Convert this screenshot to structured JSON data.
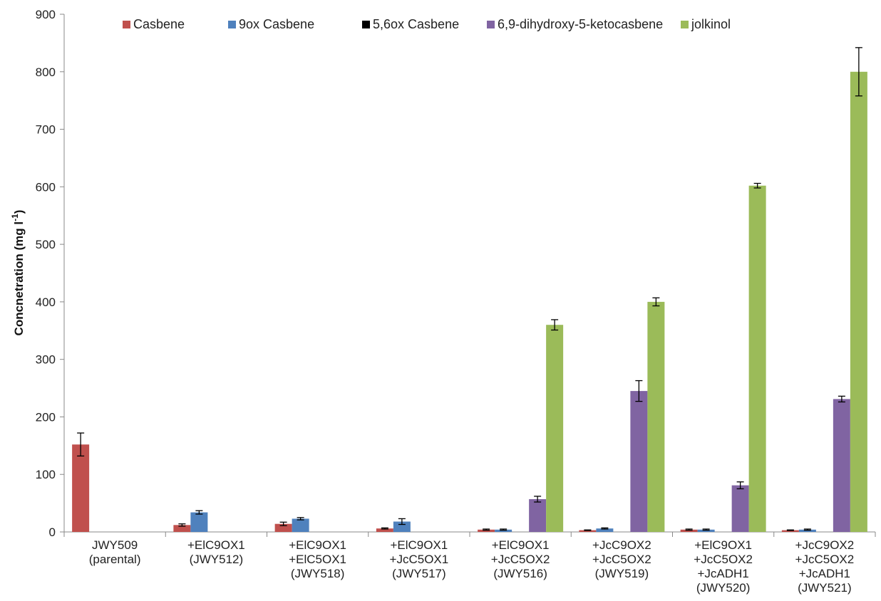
{
  "chart_data": {
    "type": "bar",
    "title": "",
    "xlabel": "",
    "ylabel": "Concnetration (mg l",
    "ylabel_superscript": "-1",
    "ylabel_suffix": ")",
    "ylim": [
      0,
      900
    ],
    "yticks": [
      0,
      100,
      200,
      300,
      400,
      500,
      600,
      700,
      800,
      900
    ],
    "grid": false,
    "legend_position": "top",
    "categories": [
      [
        "JWY509",
        "(parental)"
      ],
      [
        "+ElC9OX1",
        "(JWY512)"
      ],
      [
        "+ElC9OX1",
        "+ElC5OX1",
        "(JWY518)"
      ],
      [
        "+ElC9OX1",
        "+JcC5OX1",
        "(JWY517)"
      ],
      [
        "+ElC9OX1",
        "+JcC5OX2",
        "(JWY516)"
      ],
      [
        "+JcC9OX2",
        "+JcC5OX2",
        "(JWY519)"
      ],
      [
        "+ElC9OX1",
        "+JcC5OX2",
        "+JcADH1",
        "(JWY520)"
      ],
      [
        "+JcC9OX2",
        "+JcC5OX2",
        "+JcADH1",
        "(JWY521)"
      ]
    ],
    "series": [
      {
        "name": "Casbene",
        "color": "#c0504d",
        "values": [
          152,
          12,
          14,
          6,
          4,
          3,
          4,
          3
        ],
        "errors": [
          20,
          2,
          3,
          1,
          1,
          0.5,
          1,
          0.5
        ]
      },
      {
        "name": "9ox Casbene",
        "color": "#4f81bd",
        "values": [
          0,
          34,
          23,
          18,
          4,
          6,
          4,
          4
        ],
        "errors": [
          0,
          3,
          2,
          5,
          1,
          1,
          1,
          1
        ]
      },
      {
        "name": "5,6ox Casbene",
        "color": "#000000",
        "values": [
          0,
          0,
          0,
          0,
          0,
          0,
          0,
          0
        ],
        "errors": [
          0,
          0,
          0,
          0,
          0,
          0,
          0,
          0
        ]
      },
      {
        "name": "6,9-dihydroxy-5-ketocasbene",
        "color": "#8064a2",
        "values": [
          0,
          0,
          0,
          0,
          57,
          245,
          81,
          231
        ],
        "errors": [
          0,
          0,
          0,
          0,
          5,
          18,
          6,
          5
        ]
      },
      {
        "name": "jolkinol",
        "color": "#9bbb59",
        "values": [
          0,
          0,
          0,
          0,
          360,
          400,
          602,
          800
        ],
        "errors": [
          0,
          0,
          0,
          0,
          9,
          7,
          4,
          42
        ]
      }
    ]
  }
}
